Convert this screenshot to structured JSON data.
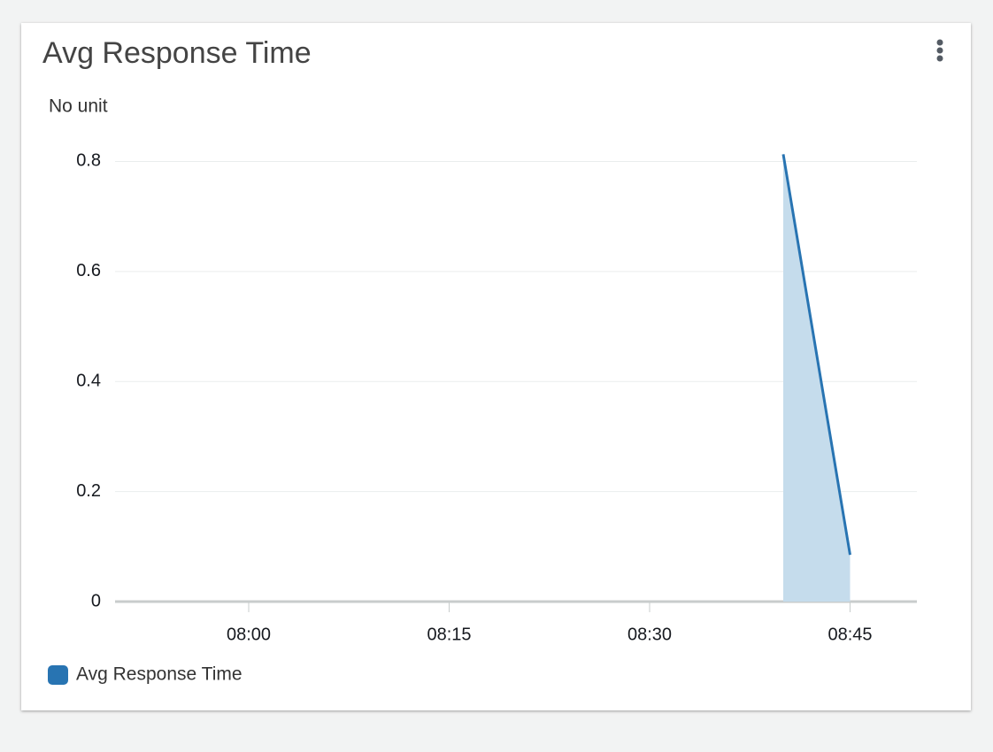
{
  "chart_data": {
    "type": "area",
    "title": "Avg Response Time",
    "y_label": "No unit",
    "x": [
      "08:40",
      "08:45"
    ],
    "series": [
      {
        "name": "Avg Response Time",
        "color": "#2874b2",
        "fill": "#c5dcec",
        "values": [
          0.813,
          0.085
        ]
      }
    ],
    "xlim": [
      "07:50",
      "08:50"
    ],
    "xticks": [
      "08:00",
      "08:15",
      "08:30",
      "08:45"
    ],
    "ylim": [
      0,
      0.82
    ],
    "yticks": [
      0,
      0.2,
      0.4,
      0.6,
      0.8
    ],
    "grid": true,
    "legend": "bottom-left"
  }
}
